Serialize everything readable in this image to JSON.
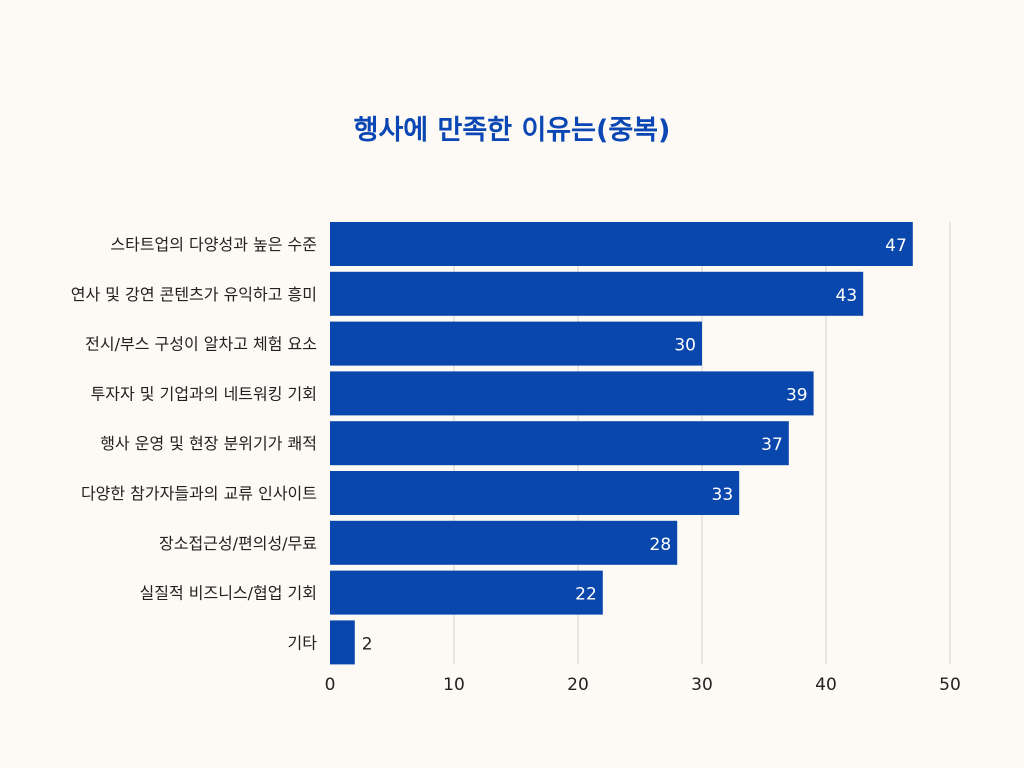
{
  "chart_data": {
    "type": "bar",
    "orientation": "horizontal",
    "title": "행사에 만족한 이유는(중복)",
    "xlabel": "",
    "ylabel": "",
    "categories": [
      "스타트업의 다양성과 높은 수준",
      "연사 및 강연 콘텐츠가 유익하고 흥미",
      "전시/부스 구성이 알차고 체험 요소",
      "투자자 및 기업과의 네트워킹 기회",
      "행사 운영 및 현장 분위기가 쾌적",
      "다양한 참가자들과의 교류 인사이트",
      "장소접근성/편의성/무료",
      "실질적 비즈니스/협업 기회",
      "기타"
    ],
    "values": [
      47,
      43,
      30,
      39,
      37,
      33,
      28,
      22,
      2
    ],
    "xlim": [
      0,
      50
    ],
    "xticks": [
      0,
      10,
      20,
      30,
      40,
      50
    ],
    "grid": true,
    "legend": "none",
    "data_labels": true
  },
  "colors": {
    "bar": "#0a47ad",
    "title": "#0a47b4",
    "background": "#fdf9f4",
    "grid": "#d4d2ce",
    "label_inside": "#ffffff",
    "label_outside": "#222222",
    "text": "#222222"
  }
}
